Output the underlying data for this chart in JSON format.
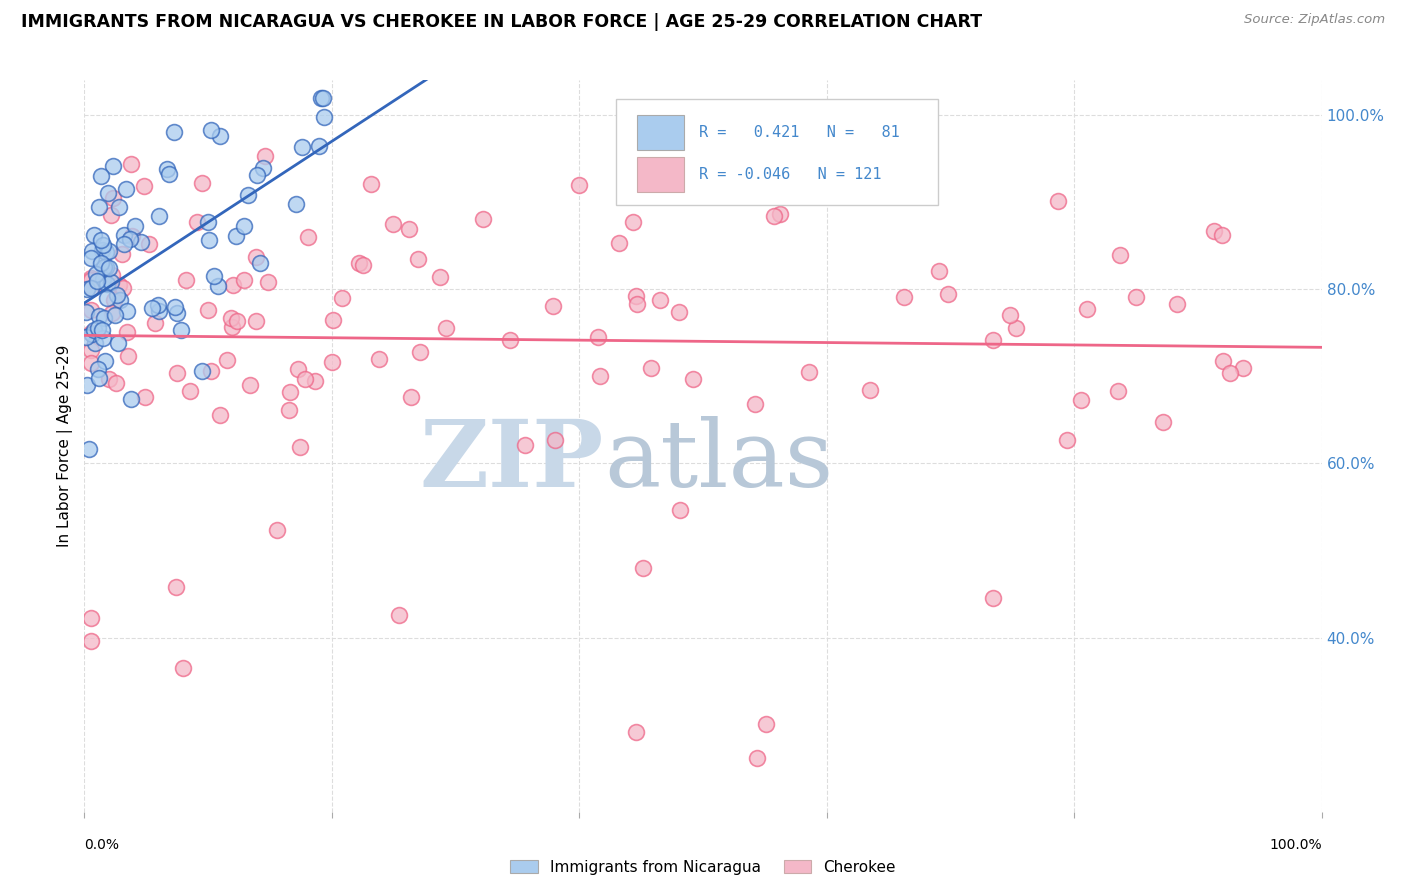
{
  "title": "IMMIGRANTS FROM NICARAGUA VS CHEROKEE IN LABOR FORCE | AGE 25-29 CORRELATION CHART",
  "source": "Source: ZipAtlas.com",
  "ylabel": "In Labor Force | Age 25-29",
  "xlim": [
    0.0,
    1.0
  ],
  "ylim": [
    0.2,
    1.04
  ],
  "legend_nicaragua": "Immigrants from Nicaragua",
  "legend_cherokee": "Cherokee",
  "R_nicaragua": 0.421,
  "N_nicaragua": 81,
  "R_cherokee": -0.046,
  "N_cherokee": 121,
  "color_nicaragua": "#aaccee",
  "color_cherokee": "#f4b8c8",
  "color_nicaragua_line": "#3366bb",
  "color_cherokee_line": "#ee6688",
  "background_color": "#ffffff",
  "watermark_zip": "ZIP",
  "watermark_atlas": "atlas",
  "watermark_color_zip": "#c8d8e8",
  "watermark_color_atlas": "#b8c8d8",
  "ytick_color": "#4488cc",
  "grid_color": "#dddddd"
}
